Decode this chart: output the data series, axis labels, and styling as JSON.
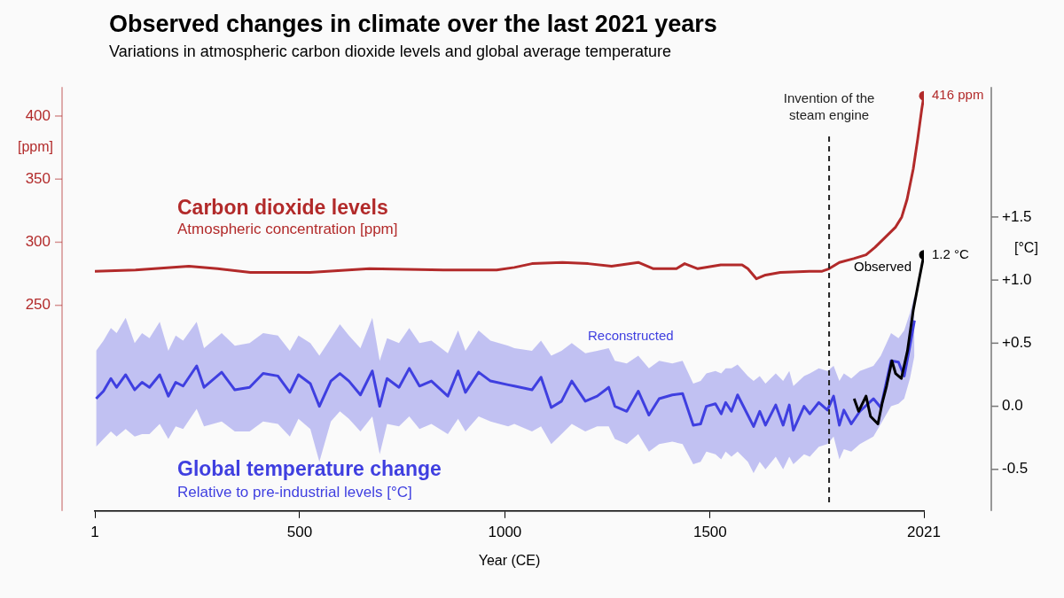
{
  "chart_data": {
    "type": "line",
    "title": "Observed changes in climate over the last 2021 years",
    "subtitle": "Variations in atmospheric carbon dioxide levels and global average temperature",
    "xlabel": "Year (CE)",
    "ylabel": "[ppm]",
    "y2label": "[°C]",
    "xlim": [
      1,
      2021
    ],
    "xticks": [
      1,
      500,
      1000,
      1500,
      2021
    ],
    "ylim": [
      87,
      423
    ],
    "yticks": [
      250,
      300,
      350,
      400
    ],
    "y2lim": [
      -0.83,
      2.53
    ],
    "y2ticks": [
      {
        "value": -0.5,
        "label": "-0.5"
      },
      {
        "value": 0,
        "label": "0.0"
      },
      {
        "value": 0.5,
        "label": "+0.5"
      },
      {
        "value": 1,
        "label": "+1.0"
      },
      {
        "value": 1.5,
        "label": "+1.5"
      }
    ],
    "ref_lines": [
      {
        "axis": "x",
        "value": 1790,
        "label": "Invention of the steam engine",
        "color": "#222222",
        "line_style": "dashed"
      }
    ],
    "annotations": [
      "Atmospheric concentration [ppm]",
      "Global temperature change",
      "Relative to pre-industrial levels [°C]"
    ],
    "series": [
      {
        "name": "Carbon dioxide levels",
        "color": "#b22a2a",
        "x": [
          1,
          100,
          230,
          300,
          380,
          525,
          670,
          850,
          980,
          1023,
          1066,
          1140,
          1203,
          1260,
          1325,
          1362,
          1418,
          1438,
          1470,
          1526,
          1578,
          1592,
          1613,
          1635,
          1671,
          1742,
          1773,
          1790,
          1815,
          1850,
          1880,
          1902,
          1924,
          1952,
          1967,
          1980,
          1995,
          2006,
          2016,
          2021
        ],
        "values": [
          277,
          278,
          281,
          279,
          276,
          276,
          279,
          278,
          278,
          280,
          283,
          284,
          283,
          281,
          284,
          279,
          279,
          283,
          279,
          282,
          282,
          279,
          271,
          274,
          276,
          277,
          277,
          279,
          284,
          287,
          290,
          296,
          303,
          312,
          320,
          334,
          358,
          382,
          406,
          416
        ],
        "value_labels": [
          null,
          null,
          null,
          null,
          null,
          null,
          null,
          null,
          null,
          null,
          null,
          null,
          null,
          null,
          null,
          null,
          null,
          null,
          null,
          null,
          null,
          null,
          null,
          null,
          null,
          null,
          null,
          null,
          null,
          null,
          null,
          null,
          null,
          null,
          null,
          null,
          null,
          null,
          null,
          "416 ppm"
        ]
      },
      {
        "name": "Reconstructed",
        "color": "#3f3fe0",
        "axis": "y2",
        "x": [
          4,
          22,
          40,
          54,
          76,
          98,
          116,
          134,
          159,
          180,
          198,
          216,
          249,
          267,
          310,
          342,
          378,
          411,
          447,
          476,
          497,
          526,
          548,
          576,
          598,
          620,
          648,
          677,
          695,
          713,
          742,
          767,
          792,
          821,
          861,
          886,
          904,
          936,
          965,
          1008,
          1023,
          1066,
          1088,
          1113,
          1138,
          1163,
          1196,
          1225,
          1253,
          1268,
          1297,
          1325,
          1351,
          1376,
          1408,
          1433,
          1459,
          1477,
          1491,
          1513,
          1527,
          1538,
          1552,
          1567,
          1592,
          1606,
          1621,
          1635,
          1660,
          1678,
          1693,
          1703,
          1729,
          1743,
          1765,
          1786,
          1801,
          1815,
          1826,
          1844,
          1865,
          1898,
          1916,
          1941,
          1959,
          1973,
          1987,
          1998
        ],
        "values": [
          0.06,
          0.12,
          0.22,
          0.15,
          0.25,
          0.13,
          0.19,
          0.15,
          0.25,
          0.08,
          0.19,
          0.16,
          0.32,
          0.15,
          0.27,
          0.13,
          0.15,
          0.26,
          0.24,
          0.11,
          0.25,
          0.18,
          0.0,
          0.2,
          0.26,
          0.2,
          0.09,
          0.28,
          0.0,
          0.22,
          0.15,
          0.3,
          0.16,
          0.2,
          0.08,
          0.28,
          0.11,
          0.27,
          0.2,
          0.17,
          0.16,
          0.13,
          0.23,
          -0.01,
          0.04,
          0.2,
          0.04,
          0.08,
          0.15,
          0.0,
          -0.04,
          0.12,
          -0.07,
          0.06,
          0.09,
          0.1,
          -0.15,
          -0.14,
          0.0,
          0.02,
          -0.06,
          0.03,
          -0.04,
          0.09,
          -0.07,
          -0.16,
          -0.04,
          -0.15,
          0.01,
          -0.15,
          0.01,
          -0.19,
          0.0,
          -0.06,
          0.03,
          -0.03,
          0.08,
          -0.15,
          -0.03,
          -0.14,
          -0.04,
          0.06,
          -0.01,
          0.36,
          0.35,
          0.24,
          0.48,
          0.68
        ],
        "lower": [
          -0.32,
          -0.26,
          -0.2,
          -0.24,
          -0.18,
          -0.24,
          -0.22,
          -0.22,
          -0.14,
          -0.26,
          -0.16,
          -0.18,
          -0.02,
          -0.16,
          -0.12,
          -0.2,
          -0.2,
          -0.12,
          -0.14,
          -0.24,
          -0.1,
          -0.18,
          -0.44,
          -0.12,
          -0.04,
          -0.1,
          -0.2,
          -0.08,
          -0.38,
          -0.14,
          -0.16,
          -0.08,
          -0.18,
          -0.14,
          -0.22,
          -0.1,
          -0.2,
          -0.08,
          -0.12,
          -0.16,
          -0.14,
          -0.2,
          -0.16,
          -0.3,
          -0.22,
          -0.14,
          -0.2,
          -0.16,
          -0.16,
          -0.26,
          -0.3,
          -0.22,
          -0.36,
          -0.3,
          -0.28,
          -0.3,
          -0.46,
          -0.44,
          -0.36,
          -0.38,
          -0.42,
          -0.36,
          -0.4,
          -0.36,
          -0.44,
          -0.53,
          -0.44,
          -0.5,
          -0.4,
          -0.5,
          -0.4,
          -0.46,
          -0.38,
          -0.4,
          -0.32,
          -0.3,
          -0.24,
          -0.42,
          -0.34,
          -0.36,
          -0.3,
          -0.24,
          -0.14,
          0.0,
          0.02,
          0.06,
          0.22,
          0.4
        ],
        "upper": [
          0.44,
          0.52,
          0.62,
          0.58,
          0.7,
          0.5,
          0.58,
          0.54,
          0.67,
          0.44,
          0.56,
          0.52,
          0.67,
          0.46,
          0.58,
          0.48,
          0.5,
          0.58,
          0.56,
          0.44,
          0.56,
          0.5,
          0.4,
          0.54,
          0.65,
          0.56,
          0.46,
          0.7,
          0.36,
          0.54,
          0.5,
          0.62,
          0.5,
          0.52,
          0.42,
          0.6,
          0.44,
          0.6,
          0.52,
          0.48,
          0.46,
          0.44,
          0.52,
          0.4,
          0.44,
          0.5,
          0.42,
          0.44,
          0.46,
          0.36,
          0.34,
          0.4,
          0.3,
          0.36,
          0.34,
          0.36,
          0.18,
          0.2,
          0.26,
          0.28,
          0.26,
          0.3,
          0.3,
          0.33,
          0.24,
          0.2,
          0.24,
          0.18,
          0.26,
          0.2,
          0.28,
          0.16,
          0.24,
          0.26,
          0.3,
          0.28,
          0.32,
          0.2,
          0.26,
          0.22,
          0.28,
          0.32,
          0.4,
          0.58,
          0.54,
          0.6,
          0.74,
          0.88
        ]
      },
      {
        "name": "Observed",
        "color": "#000000",
        "axis": "y2",
        "x": [
          1851,
          1862,
          1880,
          1891,
          1909,
          1919,
          1930,
          1943,
          1952,
          1966,
          1981,
          1995,
          2009,
          2021
        ],
        "values": [
          0.06,
          -0.04,
          0.08,
          -0.08,
          -0.14,
          0.02,
          0.16,
          0.36,
          0.26,
          0.22,
          0.44,
          0.76,
          1.0,
          1.2
        ],
        "value_labels": [
          null,
          null,
          null,
          null,
          null,
          null,
          null,
          null,
          null,
          null,
          null,
          null,
          null,
          "1.2 °C"
        ]
      }
    ]
  }
}
